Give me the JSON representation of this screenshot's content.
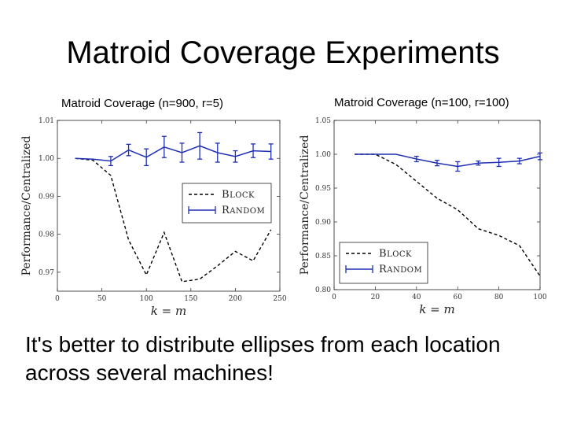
{
  "slide": {
    "title": "Matroid Coverage Experiments",
    "caption": "It's better to distribute ellipses from each location across several machines!"
  },
  "chart_data": [
    {
      "type": "line",
      "title": "Matroid Coverage (n=900, r=5)",
      "xlabel": "k = m",
      "ylabel": "Performance/Centralized",
      "xlim": [
        0,
        250
      ],
      "ylim": [
        0.965,
        1.01
      ],
      "xticks": [
        "0",
        "50",
        "100",
        "150",
        "200",
        "250"
      ],
      "yticks": [
        "0.97",
        "0.98",
        "0.99",
        "1.00",
        "1.01"
      ],
      "legend_position": "center-right",
      "series": [
        {
          "name": "Block",
          "style": "dashed",
          "color": "#000000",
          "x": [
            20,
            40,
            60,
            80,
            100,
            120,
            140,
            160,
            180,
            200,
            220,
            240
          ],
          "y": [
            1.0,
            0.9995,
            0.9955,
            0.9785,
            0.9693,
            0.9805,
            0.9675,
            0.9682,
            0.9717,
            0.9755,
            0.973,
            0.9812
          ]
        },
        {
          "name": "Random",
          "style": "solid-errorbars",
          "color": "#1f2fb4",
          "x": [
            20,
            40,
            60,
            80,
            100,
            120,
            140,
            160,
            180,
            200,
            220,
            240
          ],
          "y": [
            1.0,
            0.9998,
            0.9993,
            1.0022,
            1.0003,
            1.003,
            1.0015,
            1.0033,
            1.0015,
            1.0005,
            1.002,
            1.0018
          ],
          "err": [
            0.0,
            0.0,
            0.0012,
            0.0015,
            0.0022,
            0.0028,
            0.0025,
            0.0035,
            0.0025,
            0.0015,
            0.0018,
            0.002
          ]
        }
      ]
    },
    {
      "type": "line",
      "title": "Matroid Coverage (n=100, r=100)",
      "xlabel": "k = m",
      "ylabel": "Performance/Centralized",
      "xlim": [
        0,
        100
      ],
      "ylim": [
        0.8,
        1.05
      ],
      "xticks": [
        "0",
        "20",
        "40",
        "60",
        "80",
        "100"
      ],
      "yticks": [
        "0.80",
        "0.85",
        "0.90",
        "0.95",
        "1.00",
        "1.05"
      ],
      "legend_position": "lower-left",
      "series": [
        {
          "name": "Block",
          "style": "dashed",
          "color": "#000000",
          "x": [
            10,
            20,
            30,
            40,
            50,
            60,
            70,
            80,
            90,
            100
          ],
          "y": [
            1.0,
            1.0,
            0.985,
            0.96,
            0.935,
            0.918,
            0.89,
            0.88,
            0.865,
            0.82
          ]
        },
        {
          "name": "Random",
          "style": "solid-errorbars",
          "color": "#1f2fb4",
          "x": [
            10,
            20,
            30,
            40,
            50,
            60,
            70,
            80,
            90,
            100
          ],
          "y": [
            1.0,
            1.0,
            1.0,
            0.993,
            0.987,
            0.982,
            0.987,
            0.988,
            0.99,
            0.997
          ],
          "err": [
            0.0,
            0.0,
            0.0,
            0.004,
            0.004,
            0.007,
            0.003,
            0.006,
            0.004,
            0.005
          ]
        }
      ]
    }
  ]
}
